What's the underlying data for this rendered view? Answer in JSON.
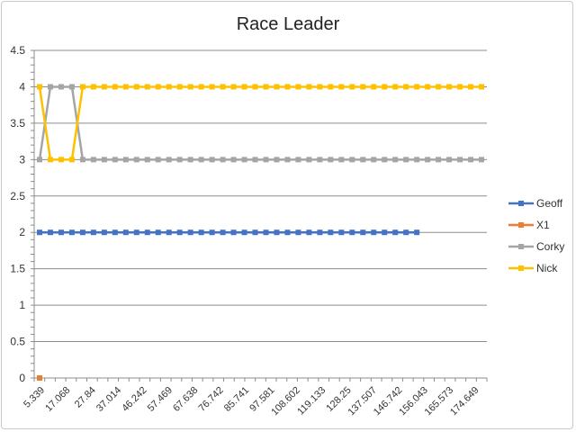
{
  "chart_data": {
    "type": "line",
    "title": "Race Leader",
    "xlabel": "",
    "ylabel": "",
    "ylim": [
      0,
      4.5
    ],
    "yticks": [
      "0",
      "0.5",
      "1",
      "1.5",
      "2",
      "2.5",
      "3",
      "3.5",
      "4",
      "4.5"
    ],
    "grid": true,
    "legend_position": "right",
    "x_tick_labels": [
      "5.339",
      "17.068",
      "27.84",
      "37.014",
      "46.242",
      "57.469",
      "67.638",
      "76.742",
      "85.741",
      "97.581",
      "108.602",
      "119.133",
      "128.25",
      "137.507",
      "146.742",
      "156.043",
      "165.573",
      "174.649"
    ],
    "series": [
      {
        "name": "Geoff",
        "color": "#4472C4",
        "values": [
          2,
          2,
          2,
          2,
          2,
          2,
          2,
          2,
          2,
          2,
          2,
          2,
          2,
          2,
          2,
          2,
          2,
          2,
          2,
          2,
          2,
          2,
          2,
          2,
          2,
          2,
          2,
          2,
          2,
          2,
          2,
          2,
          2,
          2,
          2,
          2
        ]
      },
      {
        "name": "X1",
        "color": "#ED7D31",
        "values": [
          0
        ]
      },
      {
        "name": "Corky",
        "color": "#A5A5A5",
        "values": [
          3,
          4,
          4,
          4,
          3,
          3,
          3,
          3,
          3,
          3,
          3,
          3,
          3,
          3,
          3,
          3,
          3,
          3,
          3,
          3,
          3,
          3,
          3,
          3,
          3,
          3,
          3,
          3,
          3,
          3,
          3,
          3,
          3,
          3,
          3,
          3,
          3,
          3,
          3,
          3,
          3,
          3
        ]
      },
      {
        "name": "Nick",
        "color": "#FFC000",
        "values": [
          4,
          3,
          3,
          3,
          4,
          4,
          4,
          4,
          4,
          4,
          4,
          4,
          4,
          4,
          4,
          4,
          4,
          4,
          4,
          4,
          4,
          4,
          4,
          4,
          4,
          4,
          4,
          4,
          4,
          4,
          4,
          4,
          4,
          4,
          4,
          4,
          4,
          4,
          4,
          4,
          4,
          4
        ]
      }
    ]
  }
}
